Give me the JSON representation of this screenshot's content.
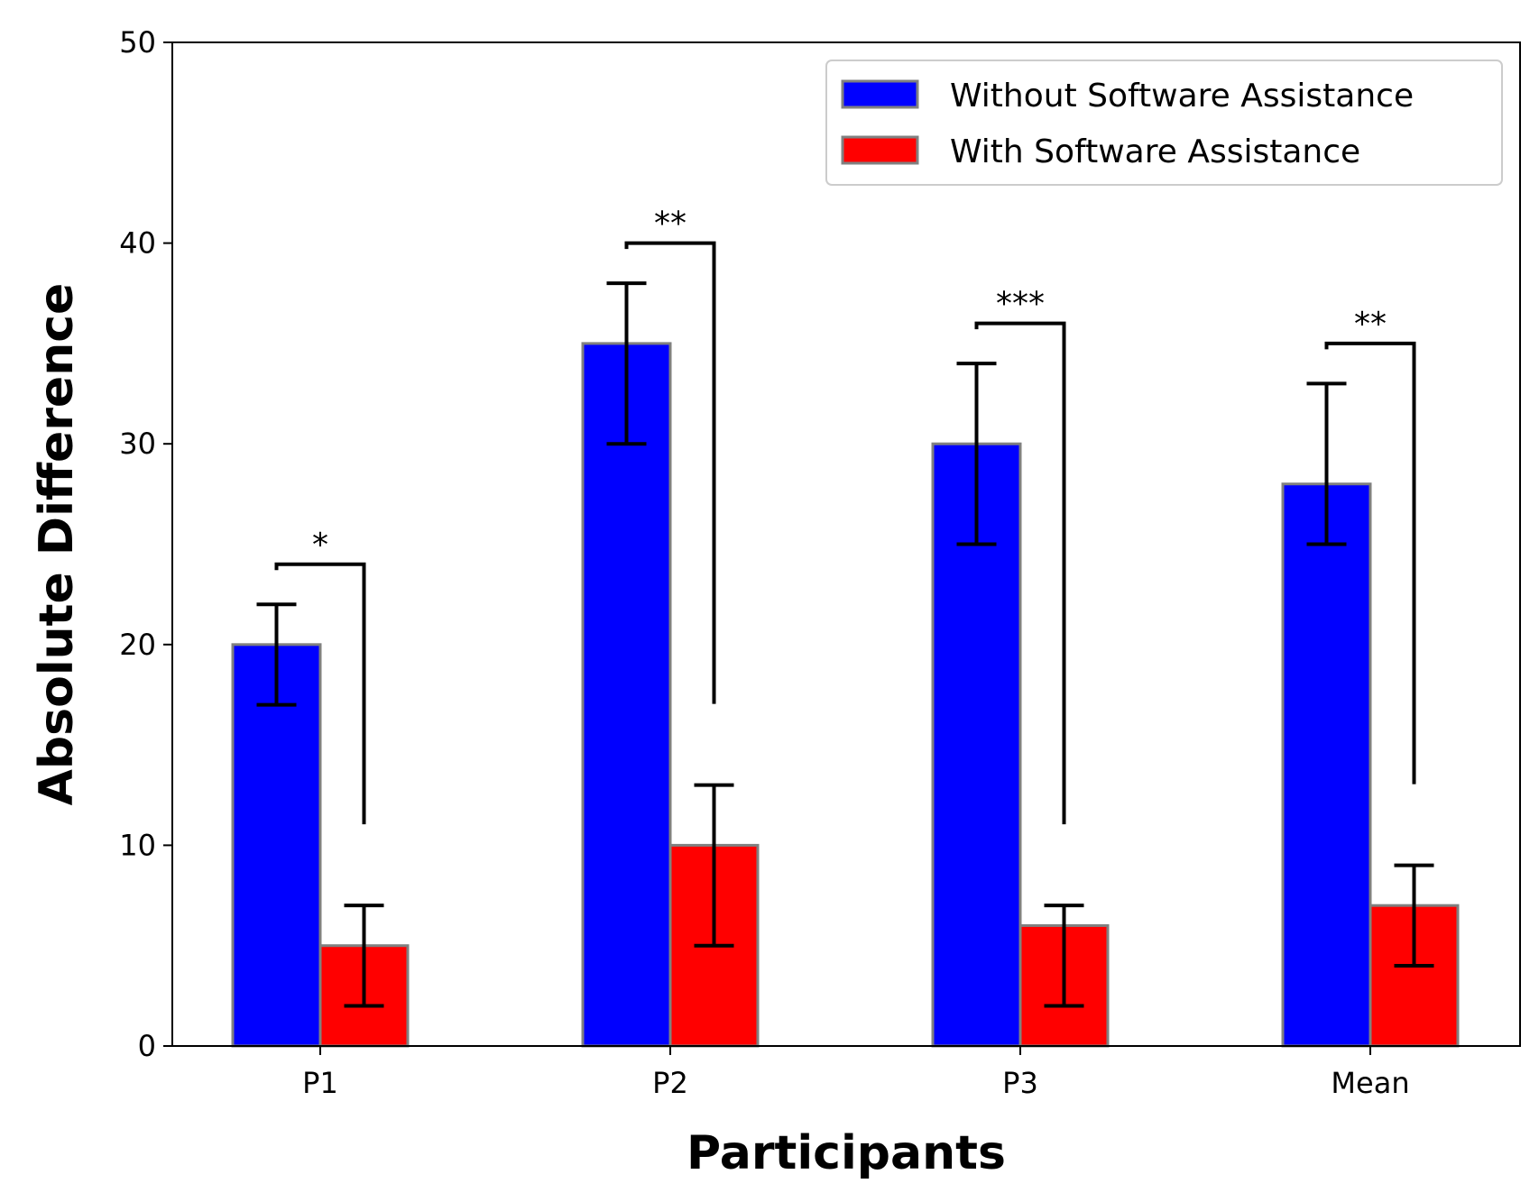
{
  "chart_data": {
    "type": "bar",
    "title": "",
    "xlabel": "Participants",
    "ylabel": "Absolute Difference",
    "categories": [
      "P1",
      "P2",
      "P3",
      "Mean"
    ],
    "ylim": [
      0,
      50
    ],
    "yticks": [
      0,
      10,
      20,
      30,
      40,
      50
    ],
    "grid": false,
    "legend_position": "top-right",
    "series": [
      {
        "name": "Without Software Assistance",
        "color": "#0000ff",
        "values": [
          20,
          35,
          30,
          28
        ],
        "error_low": [
          17,
          30,
          25,
          25
        ],
        "error_high": [
          22,
          38,
          34,
          33
        ]
      },
      {
        "name": "With Software Assistance",
        "color": "#ff0000",
        "values": [
          5,
          10,
          6,
          7
        ],
        "error_low": [
          2,
          5,
          2,
          4
        ],
        "error_high": [
          7,
          13,
          7,
          9
        ]
      }
    ],
    "significance": [
      {
        "category": "P1",
        "label": "*",
        "bracket_y": 24
      },
      {
        "category": "P2",
        "label": "**",
        "bracket_y": 40
      },
      {
        "category": "P3",
        "label": "***",
        "bracket_y": 36
      },
      {
        "category": "Mean",
        "label": "**",
        "bracket_y": 35
      }
    ]
  }
}
